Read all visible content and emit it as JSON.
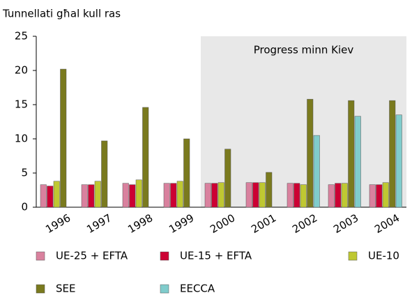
{
  "chart_data": {
    "type": "bar",
    "y_axis_label": "Tunnellati għal kull ras",
    "annotation": "Progress minn Kiev",
    "shaded_region": {
      "from": "2000",
      "to": "2004"
    },
    "categories": [
      "1996",
      "1997",
      "1998",
      "1999",
      "2000",
      "2001",
      "2002",
      "2003",
      "2004"
    ],
    "series": [
      {
        "name": "UE-25 + EFTA",
        "color": "#d9819e",
        "values": [
          3.3,
          3.3,
          3.5,
          3.5,
          3.5,
          3.6,
          3.5,
          3.3,
          3.3
        ]
      },
      {
        "name": "UE-15 + EFTA",
        "color": "#cc0033",
        "values": [
          3.1,
          3.3,
          3.3,
          3.5,
          3.5,
          3.6,
          3.5,
          3.5,
          3.3
        ]
      },
      {
        "name": "UE-10",
        "color": "#bfc832",
        "values": [
          3.8,
          3.8,
          4.0,
          3.8,
          3.6,
          3.6,
          3.3,
          3.5,
          3.6
        ]
      },
      {
        "name": "SEE",
        "color": "#7a7a1e",
        "values": [
          20.2,
          9.7,
          14.6,
          10.0,
          8.5,
          5.1,
          15.8,
          15.6,
          15.6
        ]
      },
      {
        "name": "EECCA",
        "color": "#80cccc",
        "values": [
          null,
          null,
          null,
          null,
          null,
          null,
          10.5,
          13.3,
          13.5
        ]
      }
    ],
    "ylim": [
      0,
      25
    ],
    "yticks": [
      0,
      5,
      10,
      15,
      20,
      25
    ]
  }
}
